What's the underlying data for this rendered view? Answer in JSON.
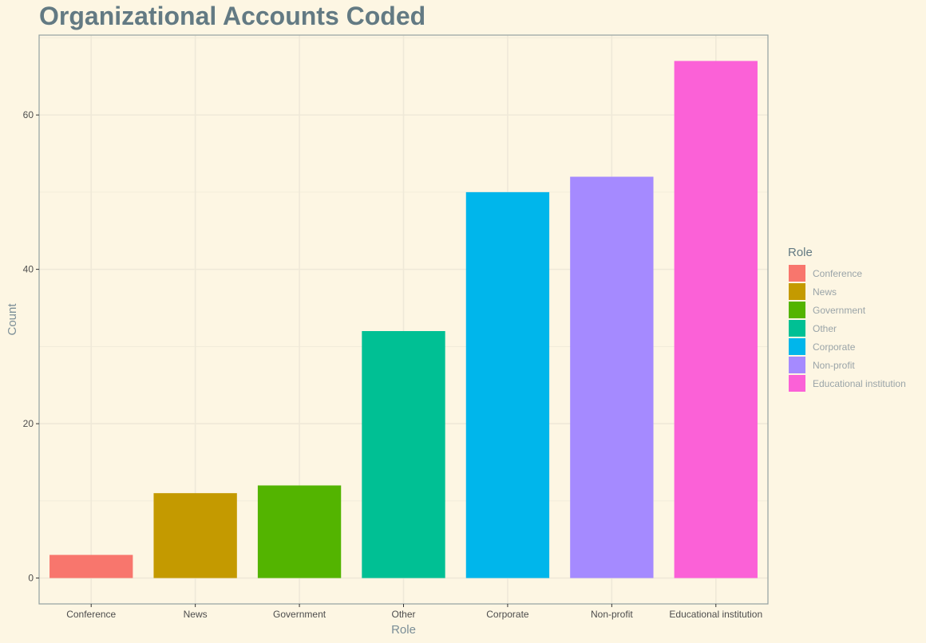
{
  "chart_data": {
    "type": "bar",
    "title": "Organizational Accounts Coded",
    "xlabel": "Role",
    "ylabel": "Count",
    "categories": [
      "Conference",
      "News",
      "Government",
      "Other",
      "Corporate",
      "Non-profit",
      "Educational institution"
    ],
    "values": [
      3,
      11,
      12,
      32,
      50,
      52,
      67
    ],
    "colors": [
      "#f8766d",
      "#c49a00",
      "#53b400",
      "#00c094",
      "#00b6eb",
      "#a58aff",
      "#fb61d7"
    ],
    "ylim": [
      -3.35,
      70.35
    ],
    "yticks": [
      0,
      20,
      40,
      60
    ],
    "grid": true,
    "legend": {
      "title": "Role",
      "placement": "right",
      "items": [
        "Conference",
        "News",
        "Government",
        "Other",
        "Corporate",
        "Non-profit",
        "Educational institution"
      ]
    }
  },
  "colors": {
    "background": "#fdf6e3",
    "panel_border": "#93a1a1",
    "grid": "#efe9d8",
    "title": "#637a83"
  }
}
